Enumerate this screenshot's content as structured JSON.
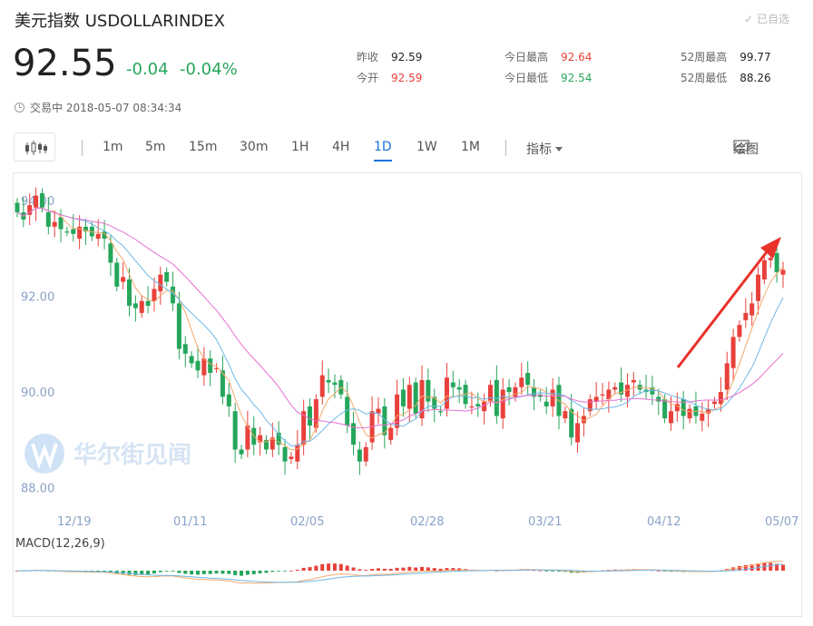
{
  "header": {
    "title": "美元指数 USDOLLARINDEX",
    "fav_label": "✓ 已自选"
  },
  "quote": {
    "price": "92.55",
    "change": "-0.04",
    "change_pct": "-0.04%"
  },
  "stats": {
    "prev_close_label": "昨收",
    "prev_close": "92.59",
    "open_label": "今开",
    "open": "92.59",
    "day_high_label": "今日最高",
    "day_high": "92.64",
    "day_low_label": "今日最低",
    "day_low": "92.54",
    "w52_high_label": "52周最高",
    "w52_high": "99.77",
    "w52_low_label": "52周最低",
    "w52_low": "88.26"
  },
  "status": {
    "text": "交易中 2018-05-07 08:34:34"
  },
  "toolbar": {
    "periods": [
      "1m",
      "5m",
      "15m",
      "30m",
      "1H",
      "4H",
      "1D",
      "1W",
      "1M"
    ],
    "active_period": "1D",
    "indicator_label": "指标",
    "draw_label": "绘图"
  },
  "watermark": {
    "text": "华尔街见闻"
  },
  "colors": {
    "up": "#e8413b",
    "down": "#26a65b",
    "ma5": "#f5a86b",
    "ma10": "#6fb8e8",
    "ma20": "#e86fd0",
    "accent": "#1a73d9",
    "arrow": "#e8312a"
  },
  "chart_data": {
    "type": "candlestick",
    "y_ticks": [
      "94.00",
      "92.00",
      "90.00",
      "88.00"
    ],
    "ylim": [
      87.9,
      94.3
    ],
    "x_ticks": [
      "12/19",
      "01/11",
      "02/05",
      "02/28",
      "03/21",
      "04/12",
      "05/07"
    ],
    "close": [
      93.75,
      93.6,
      93.9,
      94.1,
      93.85,
      93.45,
      93.55,
      93.4,
      93.35,
      93.3,
      93.45,
      93.35,
      93.25,
      93.3,
      93.2,
      92.7,
      92.2,
      92.4,
      91.8,
      91.75,
      91.9,
      91.8,
      92.15,
      92.45,
      92.3,
      91.85,
      90.9,
      90.8,
      90.6,
      90.45,
      90.7,
      90.4,
      90.5,
      89.9,
      89.7,
      88.8,
      88.7,
      89.3,
      88.9,
      89.1,
      88.8,
      89.05,
      88.9,
      88.55,
      88.65,
      88.9,
      89.6,
      89.3,
      89.85,
      90.35,
      90.2,
      90.15,
      89.95,
      89.3,
      88.9,
      88.55,
      88.85,
      89.6,
      89.65,
      89.1,
      89.25,
      89.95,
      89.7,
      90.15,
      89.55,
      90.25,
      89.8,
      89.65,
      89.6,
      90.3,
      90.1,
      90.05,
      89.75,
      89.7,
      89.7,
      89.8,
      90.15,
      89.5,
      90.05,
      90.0,
      90.1,
      90.3,
      90.15,
      89.9,
      89.9,
      89.7,
      90.05,
      89.5,
      89.6,
      89.05,
      89.35,
      89.5,
      89.85,
      89.9,
      89.95,
      90.05,
      90.1,
      89.95,
      90.15,
      90.25,
      90.05,
      90.0,
      89.95,
      89.8,
      89.45,
      89.6,
      89.75,
      89.5,
      89.65,
      89.5,
      89.55,
      89.65,
      89.8,
      90.0,
      90.6,
      91.15,
      91.4,
      91.65,
      91.85,
      92.45,
      92.75,
      92.8,
      92.5,
      92.55
    ]
  },
  "macd": {
    "label": "MACD(12,26,9)"
  }
}
